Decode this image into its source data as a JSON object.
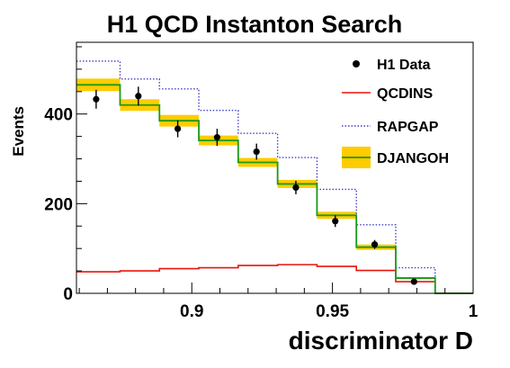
{
  "chart_data": {
    "type": "bar",
    "title": "H1 QCD Instanton Search",
    "xlabel": "discriminator D",
    "ylabel": "Events",
    "xlim": [
      0.859,
      1.0
    ],
    "ylim": [
      0,
      560
    ],
    "x_ticks": [
      {
        "value": 0.9,
        "label": "0.9"
      },
      {
        "value": 0.95,
        "label": "0.95"
      },
      {
        "value": 1.0,
        "label": "1"
      }
    ],
    "y_ticks": [
      {
        "value": 0,
        "label": "0"
      },
      {
        "value": 200,
        "label": "200"
      },
      {
        "value": 400,
        "label": "400"
      }
    ],
    "bin_edges": [
      0.859,
      0.8745,
      0.8885,
      0.9025,
      0.9165,
      0.9305,
      0.9445,
      0.9585,
      0.9725,
      0.9865,
      1.0
    ],
    "series": [
      {
        "name": "H1 Data",
        "style": "points",
        "color": "#000000",
        "x": [
          0.866,
          0.881,
          0.895,
          0.909,
          0.923,
          0.937,
          0.951,
          0.965,
          0.979
        ],
        "values": [
          433,
          440,
          367,
          348,
          316,
          236,
          161,
          109,
          26
        ],
        "errors": [
          21,
          21,
          19,
          19,
          18,
          15,
          13,
          10,
          5
        ]
      },
      {
        "name": "QCDINS",
        "style": "step",
        "color": "#e8150c",
        "values": [
          48,
          50,
          55,
          57,
          62,
          64,
          60,
          51,
          26,
          0
        ]
      },
      {
        "name": "RAPGAP",
        "style": "step-dotted",
        "color": "#4040c8",
        "values": [
          518,
          478,
          456,
          408,
          357,
          303,
          232,
          153,
          57,
          0
        ]
      },
      {
        "name": "DJANGOH",
        "style": "step-band",
        "color": "#1a9a1a",
        "band_color": "#ffcc00",
        "values": [
          465,
          420,
          385,
          341,
          292,
          244,
          174,
          103,
          34,
          0
        ],
        "uncertainty": [
          14,
          13,
          13,
          11,
          10,
          9,
          8,
          6,
          2,
          0
        ]
      }
    ],
    "legend_position": "top-right",
    "grid": false
  }
}
